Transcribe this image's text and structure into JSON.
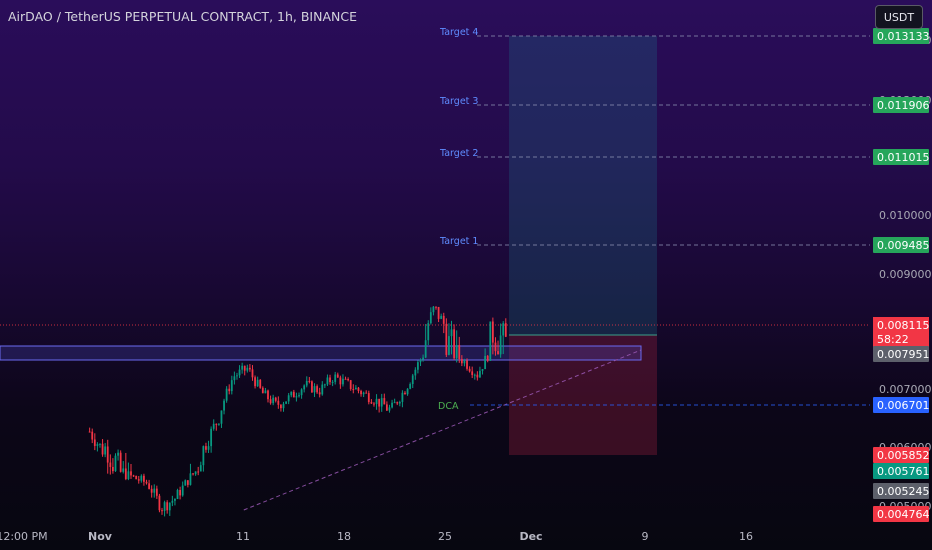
{
  "header": {
    "title": "AirDAO / TetherUS PERPETUAL CONTRACT, 1h, BINANCE",
    "currency": "USDT"
  },
  "chart_data": {
    "type": "candlestick",
    "symbol": "AirDAO / TetherUS PERPETUAL CONTRACT",
    "interval": "1h",
    "exchange": "BINANCE",
    "y_ticks": [
      "0.013000",
      "0.012000",
      "0.010000",
      "0.009000",
      "0.007000",
      "0.006000",
      "0.005000"
    ],
    "x_ticks": [
      "12:00 PM",
      "Nov",
      "11",
      "18",
      "25",
      "Dec",
      "9",
      "16"
    ],
    "price_path": [
      {
        "x": "Oct 30",
        "y": 0.00625
      },
      {
        "x": "Oct 31",
        "y": 0.0059
      },
      {
        "x": "Nov 1",
        "y": 0.006
      },
      {
        "x": "Nov 2",
        "y": 0.00575
      },
      {
        "x": "Nov 3",
        "y": 0.0056
      },
      {
        "x": "Nov 4",
        "y": 0.00545
      },
      {
        "x": "Nov 5",
        "y": 0.0049
      },
      {
        "x": "Nov 6",
        "y": 0.0051
      },
      {
        "x": "Nov 7",
        "y": 0.0056
      },
      {
        "x": "Nov 8",
        "y": 0.006
      },
      {
        "x": "Nov 9",
        "y": 0.0065
      },
      {
        "x": "Nov 10",
        "y": 0.0074
      },
      {
        "x": "Nov 11",
        "y": 0.0076
      },
      {
        "x": "Nov 12",
        "y": 0.007
      },
      {
        "x": "Nov 13",
        "y": 0.0067
      },
      {
        "x": "Nov 14",
        "y": 0.0069
      },
      {
        "x": "Nov 15",
        "y": 0.0072
      },
      {
        "x": "Nov 16",
        "y": 0.00705
      },
      {
        "x": "Nov 17",
        "y": 0.0074
      },
      {
        "x": "Nov 18",
        "y": 0.0072
      },
      {
        "x": "Nov 19",
        "y": 0.007
      },
      {
        "x": "Nov 20",
        "y": 0.0068
      },
      {
        "x": "Nov 21",
        "y": 0.0066
      },
      {
        "x": "Nov 22",
        "y": 0.0071
      },
      {
        "x": "Nov 23",
        "y": 0.0078
      },
      {
        "x": "Nov 24",
        "y": 0.0084
      },
      {
        "x": "Nov 25",
        "y": 0.008
      },
      {
        "x": "Nov 26",
        "y": 0.0078
      },
      {
        "x": "Nov 27",
        "y": 0.00745
      },
      {
        "x": "Nov 28",
        "y": 0.0081
      },
      {
        "x": "Nov 29",
        "y": 0.008
      }
    ],
    "levels": [
      {
        "label": "Target 4",
        "value": 0.013133,
        "badge": "0.013133",
        "color": "#26a65b"
      },
      {
        "label": "Target 3",
        "value": 0.011906,
        "badge": "0.011906",
        "color": "#26a65b"
      },
      {
        "label": "Target 2",
        "value": 0.011015,
        "badge": "0.011015",
        "color": "#26a65b"
      },
      {
        "label": "Target 1",
        "value": 0.009485,
        "badge": "0.009485",
        "color": "#26a65b"
      },
      {
        "label": "DCA",
        "value": 0.006701,
        "badge": "0.006701",
        "color": "#2962ff"
      }
    ],
    "current_price": {
      "value": 0.008115,
      "badge": "0.008115",
      "countdown": "58:22",
      "color": "#f23645"
    },
    "zone_price": {
      "value": 0.007951,
      "badge": "0.007951",
      "color": "#5d606b"
    },
    "lower_badges": [
      {
        "value": 0.005852,
        "badge": "0.005852",
        "color": "#f23645"
      },
      {
        "value": 0.005761,
        "badge": "0.005761",
        "color": "#089981"
      },
      {
        "value": 0.005245,
        "badge": "0.005245",
        "color": "#5d606b"
      },
      {
        "value": 0.004764,
        "badge": "0.004764",
        "color": "#f23645"
      }
    ],
    "position": {
      "entry": 0.008115,
      "target": 0.013133,
      "stop": 0.005852
    },
    "support_zone": {
      "top": 0.0081,
      "bottom": 0.00775
    },
    "trendline": {
      "from": {
        "x": "Nov 6",
        "y": 0.0048
      },
      "to": {
        "x": "Dec 4",
        "y": 0.0079
      }
    },
    "colors": {
      "up": "#089981",
      "down": "#f23645",
      "target_label": "#5f8cff",
      "dca_label": "#4caf50",
      "trendline": "#9b59b6",
      "zone": "#6a6af0"
    }
  }
}
